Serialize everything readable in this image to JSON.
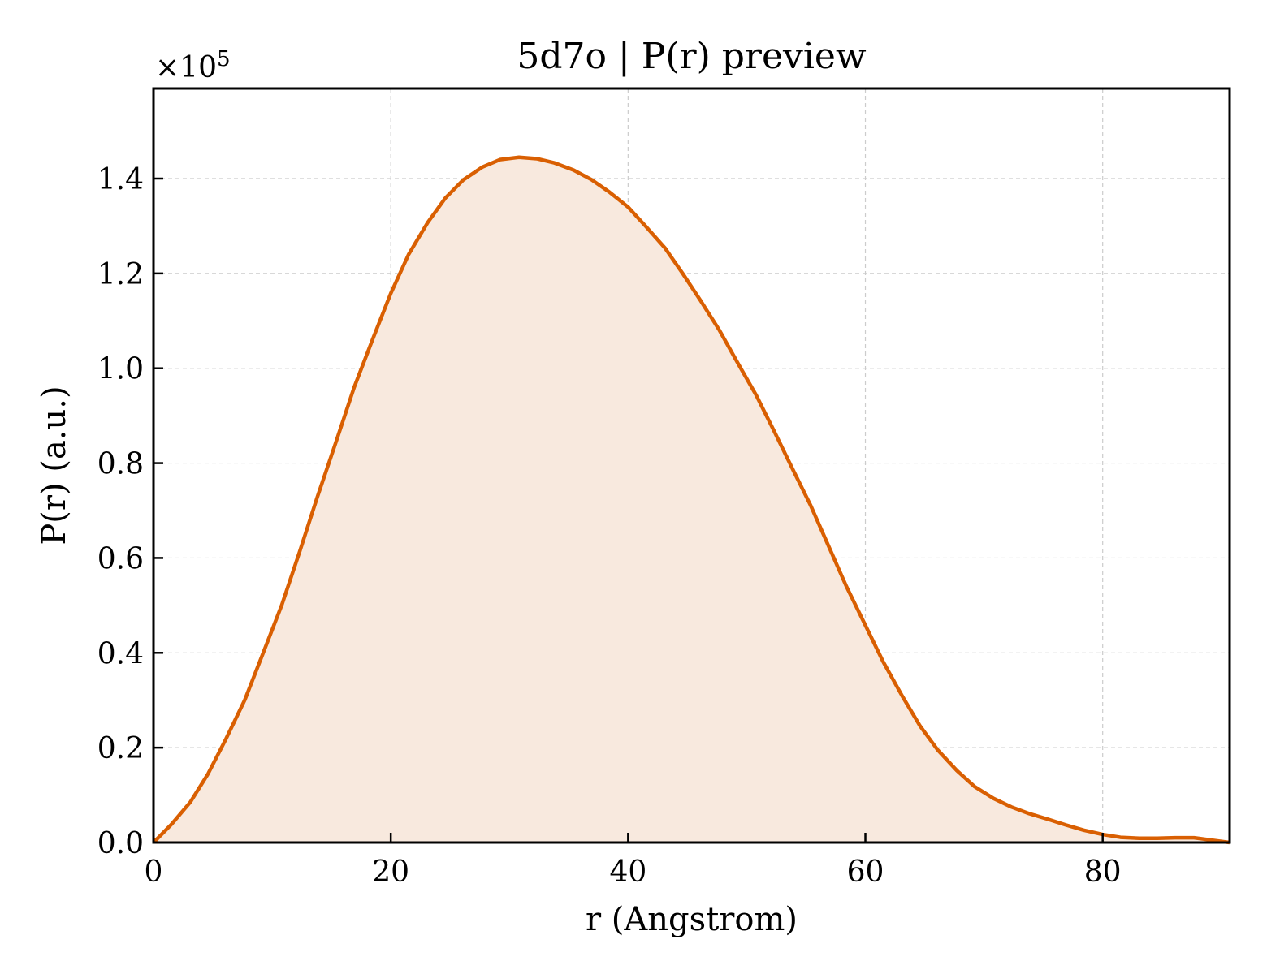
{
  "chart_data": {
    "type": "area",
    "title": "5d7o | P(r) preview",
    "xlabel": "r (Angstrom)",
    "ylabel": "P(r) (a.u.)",
    "y_offset_label": "×10",
    "y_offset_exponent": "5",
    "xlim": [
      0,
      90.7
    ],
    "ylim": [
      0,
      1.59
    ],
    "y_scale_note": "values in units of 1e5",
    "x_ticks": [
      0,
      20,
      40,
      60,
      80
    ],
    "y_ticks": [
      0.0,
      0.2,
      0.4,
      0.6,
      0.8,
      1.0,
      1.2,
      1.4
    ],
    "x_tick_labels": [
      "0",
      "20",
      "40",
      "60",
      "80"
    ],
    "y_tick_labels": [
      "0.0",
      "0.2",
      "0.4",
      "0.6",
      "0.8",
      "1.0",
      "1.2",
      "1.4"
    ],
    "grid": true,
    "colors": {
      "line": "#d95f02",
      "fill": "#f8e9de",
      "grid": "#cccccc"
    },
    "series": [
      {
        "x": [
          0.0,
          1.5,
          3.1,
          4.6,
          6.1,
          7.7,
          9.2,
          10.8,
          12.3,
          13.8,
          15.4,
          16.9,
          18.5,
          20.0,
          21.5,
          23.1,
          24.6,
          26.1,
          27.7,
          29.2,
          30.8,
          32.3,
          33.8,
          35.4,
          36.9,
          38.4,
          40.0,
          41.5,
          43.1,
          44.6,
          46.1,
          47.7,
          49.2,
          50.8,
          52.3,
          53.8,
          55.4,
          56.9,
          58.4,
          60.0,
          61.5,
          63.1,
          64.6,
          66.1,
          67.7,
          69.2,
          70.8,
          72.3,
          73.8,
          75.4,
          76.9,
          78.4,
          80.0,
          81.5,
          83.1,
          84.6,
          86.1,
          87.7,
          89.2,
          90.7
        ],
        "values": [
          0.0,
          0.038,
          0.085,
          0.145,
          0.218,
          0.301,
          0.397,
          0.5,
          0.612,
          0.728,
          0.846,
          0.959,
          1.063,
          1.158,
          1.24,
          1.307,
          1.359,
          1.397,
          1.424,
          1.44,
          1.445,
          1.442,
          1.433,
          1.418,
          1.398,
          1.372,
          1.34,
          1.299,
          1.254,
          1.2,
          1.143,
          1.08,
          1.013,
          0.943,
          0.868,
          0.791,
          0.71,
          0.625,
          0.54,
          0.458,
          0.381,
          0.309,
          0.246,
          0.195,
          0.152,
          0.118,
          0.093,
          0.075,
          0.061,
          0.049,
          0.037,
          0.026,
          0.017,
          0.011,
          0.009,
          0.009,
          0.01,
          0.01,
          0.005,
          0.0
        ]
      }
    ]
  }
}
